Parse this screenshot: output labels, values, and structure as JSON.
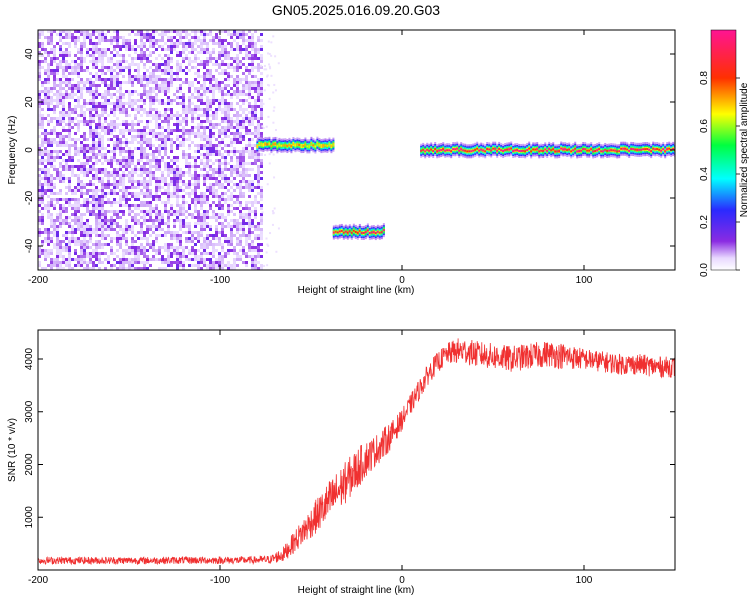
{
  "figure": {
    "title": "GN05.2025.016.09.20.G03"
  },
  "chart_data": [
    {
      "type": "heatmap",
      "title": "GN05.2025.016.09.20.G03",
      "xlabel": "Height of straight line (km)",
      "ylabel": "Frequency (Hz)",
      "xlim": [
        -200,
        150
      ],
      "ylim": [
        -50,
        50
      ],
      "x_ticks": [
        -200,
        -100,
        0,
        100
      ],
      "y_ticks": [
        -40,
        -20,
        0,
        20,
        40
      ],
      "colorbar": {
        "label": "Normalized spectral amplitude",
        "range": [
          0,
          1
        ],
        "ticks": [
          "0.0",
          "0.2",
          "0.4",
          "0.6",
          "0.8"
        ],
        "colormap": "rainbow (white-violet-blue-cyan-green-yellow-red-magenta)"
      },
      "noise_region": {
        "x_range": [
          -200,
          -78
        ],
        "frequency_range": [
          -50,
          50
        ],
        "amplitude": "low (0.1-0.3)"
      },
      "segments": [
        {
          "x_range": [
            -80,
            -38
          ],
          "frequency_hz": 2,
          "peak_amplitude": 0.7
        },
        {
          "x_range": [
            -38,
            -10
          ],
          "frequency_hz": -34,
          "peak_amplitude": 0.9
        },
        {
          "x_range": [
            10,
            150
          ],
          "frequency_hz": 0,
          "peak_amplitude": 0.95
        }
      ],
      "grid": false
    },
    {
      "type": "line",
      "xlabel": "Height of straight line (km)",
      "ylabel": "SNR (10 * v/v)",
      "xlim": [
        -200,
        150
      ],
      "ylim": [
        0,
        4550
      ],
      "x_ticks": [
        -200,
        -100,
        0,
        100
      ],
      "y_ticks": [
        1000,
        2000,
        3000,
        4000
      ],
      "color": "#f03030",
      "series": [
        {
          "x": [
            -200,
            -180,
            -160,
            -140,
            -120,
            -100,
            -90,
            -80,
            -72,
            -65,
            -60,
            -55,
            -50,
            -45,
            -40,
            -35,
            -30,
            -25,
            -20,
            -15,
            -10,
            -5,
            0,
            5,
            10,
            15,
            20,
            25,
            30,
            35,
            40,
            50,
            60,
            70,
            80,
            90,
            100,
            110,
            120,
            130,
            140,
            150
          ],
          "values": [
            180,
            180,
            180,
            180,
            185,
            185,
            185,
            190,
            200,
            300,
            500,
            700,
            900,
            1100,
            1300,
            1500,
            1700,
            1900,
            2100,
            2250,
            2400,
            2600,
            2850,
            3150,
            3450,
            3750,
            3950,
            4100,
            4150,
            4150,
            4100,
            4050,
            4000,
            4050,
            4100,
            4050,
            4000,
            3950,
            3900,
            3900,
            3850,
            3850
          ],
          "noise_amplitude": [
            70,
            70,
            70,
            70,
            70,
            70,
            70,
            70,
            80,
            150,
            200,
            250,
            300,
            350,
            400,
            400,
            400,
            400,
            350,
            300,
            300,
            250,
            200,
            200,
            200,
            200,
            200,
            200,
            250,
            250,
            250,
            250,
            250,
            250,
            250,
            250,
            200,
            200,
            200,
            200,
            200,
            200
          ]
        }
      ],
      "grid": false
    }
  ]
}
